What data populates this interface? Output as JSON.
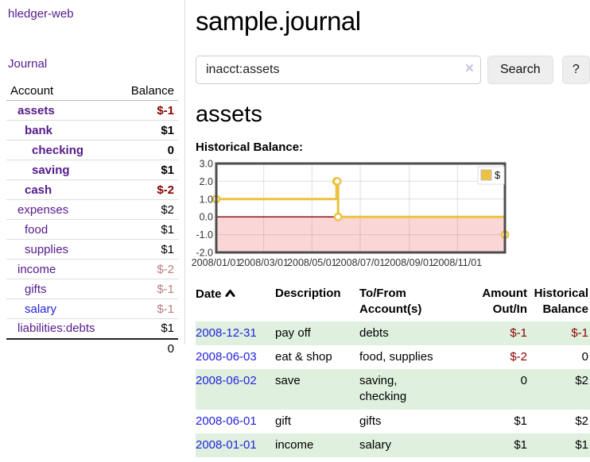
{
  "colors": {
    "purple": "#551a8b",
    "blue": "#2323dd",
    "negative_strong": "#8b0000",
    "negative_dim": "#b97c7c",
    "row_stripe_green": "#dff0df",
    "series_yellow": "#edc240",
    "negative_area_pink": "#fbd6d6",
    "zero_line_red": "#8b0000",
    "chart_border_gray": "#4d4d4d"
  },
  "sidebar": {
    "brand": "hledger-web",
    "nav_journal": "Journal",
    "table": {
      "headers": [
        "Account",
        "Balance"
      ],
      "rows": [
        {
          "account": "assets",
          "depth": 0,
          "balance": "$-1",
          "emph": true,
          "link": "purple",
          "bal": "neg-strong"
        },
        {
          "account": "bank",
          "depth": 1,
          "balance": "$1",
          "emph": true,
          "link": "purple",
          "bal": "normal"
        },
        {
          "account": "checking",
          "depth": 2,
          "balance": "0",
          "emph": true,
          "link": "purple",
          "bal": "normal"
        },
        {
          "account": "saving",
          "depth": 2,
          "balance": "$1",
          "emph": true,
          "link": "purple",
          "bal": "normal"
        },
        {
          "account": "cash",
          "depth": 1,
          "balance": "$-2",
          "emph": true,
          "link": "purple",
          "bal": "neg-strong"
        },
        {
          "account": "expenses",
          "depth": 0,
          "balance": "$2",
          "emph": false,
          "link": "purple",
          "bal": "normal"
        },
        {
          "account": "food",
          "depth": 1,
          "balance": "$1",
          "emph": false,
          "link": "purple",
          "bal": "normal"
        },
        {
          "account": "supplies",
          "depth": 1,
          "balance": "$1",
          "emph": false,
          "link": "purple",
          "bal": "normal"
        },
        {
          "account": "income",
          "depth": 0,
          "balance": "$-2",
          "emph": false,
          "link": "purple",
          "bal": "neg-dim"
        },
        {
          "account": "gifts",
          "depth": 1,
          "balance": "$-1",
          "emph": false,
          "link": "purple",
          "bal": "neg-dim"
        },
        {
          "account": "salary",
          "depth": 1,
          "balance": "$-1",
          "emph": false,
          "link": "blue",
          "bal": "neg-dim"
        },
        {
          "account": "liabilities:debts",
          "depth": 0,
          "balance": "$1",
          "emph": false,
          "link": "purple",
          "bal": "normal"
        }
      ],
      "total": "0"
    }
  },
  "header": {
    "title": "sample.journal"
  },
  "search": {
    "value": "inacct:assets",
    "clear_icon": "×",
    "button_label": "Search",
    "help_label": "?"
  },
  "account_page": {
    "title": "assets",
    "chart_label": "Historical Balance:"
  },
  "chart_data": {
    "type": "line",
    "step": true,
    "title": "Historical Balance",
    "legend": "$",
    "legend_position": "top-right",
    "x_range": [
      "2008-01-01",
      "2008-12-31"
    ],
    "ylim": [
      -2,
      3
    ],
    "yticks": [
      "3.0",
      "2.0",
      "1.0",
      "0.0",
      "-1.0",
      "-2.0"
    ],
    "ytick_values": [
      3,
      2,
      1,
      0,
      -1,
      -2
    ],
    "xticks": [
      "2008/01/01",
      "2008/03/01",
      "2008/05/01",
      "2008/07/01",
      "2008/09/01",
      "2008/11/01"
    ],
    "grid": true,
    "series": [
      {
        "name": "$",
        "color": "#edc240",
        "points": [
          {
            "date": "2008-01-01",
            "value": 1
          },
          {
            "date": "2008-06-01",
            "value": 2
          },
          {
            "date": "2008-06-02",
            "value": 2
          },
          {
            "date": "2008-06-03",
            "value": 0
          },
          {
            "date": "2008-12-31",
            "value": -1
          }
        ]
      }
    ]
  },
  "register": {
    "columns": [
      {
        "lines": [
          "Date"
        ],
        "align": "left",
        "sorted_asc": true
      },
      {
        "lines": [
          "Description"
        ],
        "align": "left"
      },
      {
        "lines": [
          "To/From",
          "Account(s)"
        ],
        "align": "left"
      },
      {
        "lines": [
          "Amount",
          "Out/In"
        ],
        "align": "right"
      },
      {
        "lines": [
          "Historical",
          "Balance"
        ],
        "align": "right"
      }
    ],
    "rows": [
      {
        "date": "2008-12-31",
        "description": "pay off",
        "accounts": [
          "debts"
        ],
        "amount": "$-1",
        "amount_neg": true,
        "balance": "$-1",
        "balance_neg": true,
        "stripe": true
      },
      {
        "date": "2008-06-03",
        "description": "eat & shop",
        "accounts": [
          "food, supplies"
        ],
        "amount": "$-2",
        "amount_neg": true,
        "balance": "0",
        "balance_neg": false,
        "stripe": false
      },
      {
        "date": "2008-06-02",
        "description": "save",
        "accounts": [
          "saving,",
          "checking"
        ],
        "amount": "0",
        "amount_neg": false,
        "balance": "$2",
        "balance_neg": false,
        "stripe": true
      },
      {
        "date": "2008-06-01",
        "description": "gift",
        "accounts": [
          "gifts"
        ],
        "amount": "$1",
        "amount_neg": false,
        "balance": "$2",
        "balance_neg": false,
        "stripe": false
      },
      {
        "date": "2008-01-01",
        "description": "income",
        "accounts": [
          "salary"
        ],
        "amount": "$1",
        "amount_neg": false,
        "balance": "$1",
        "balance_neg": false,
        "stripe": true
      }
    ]
  }
}
